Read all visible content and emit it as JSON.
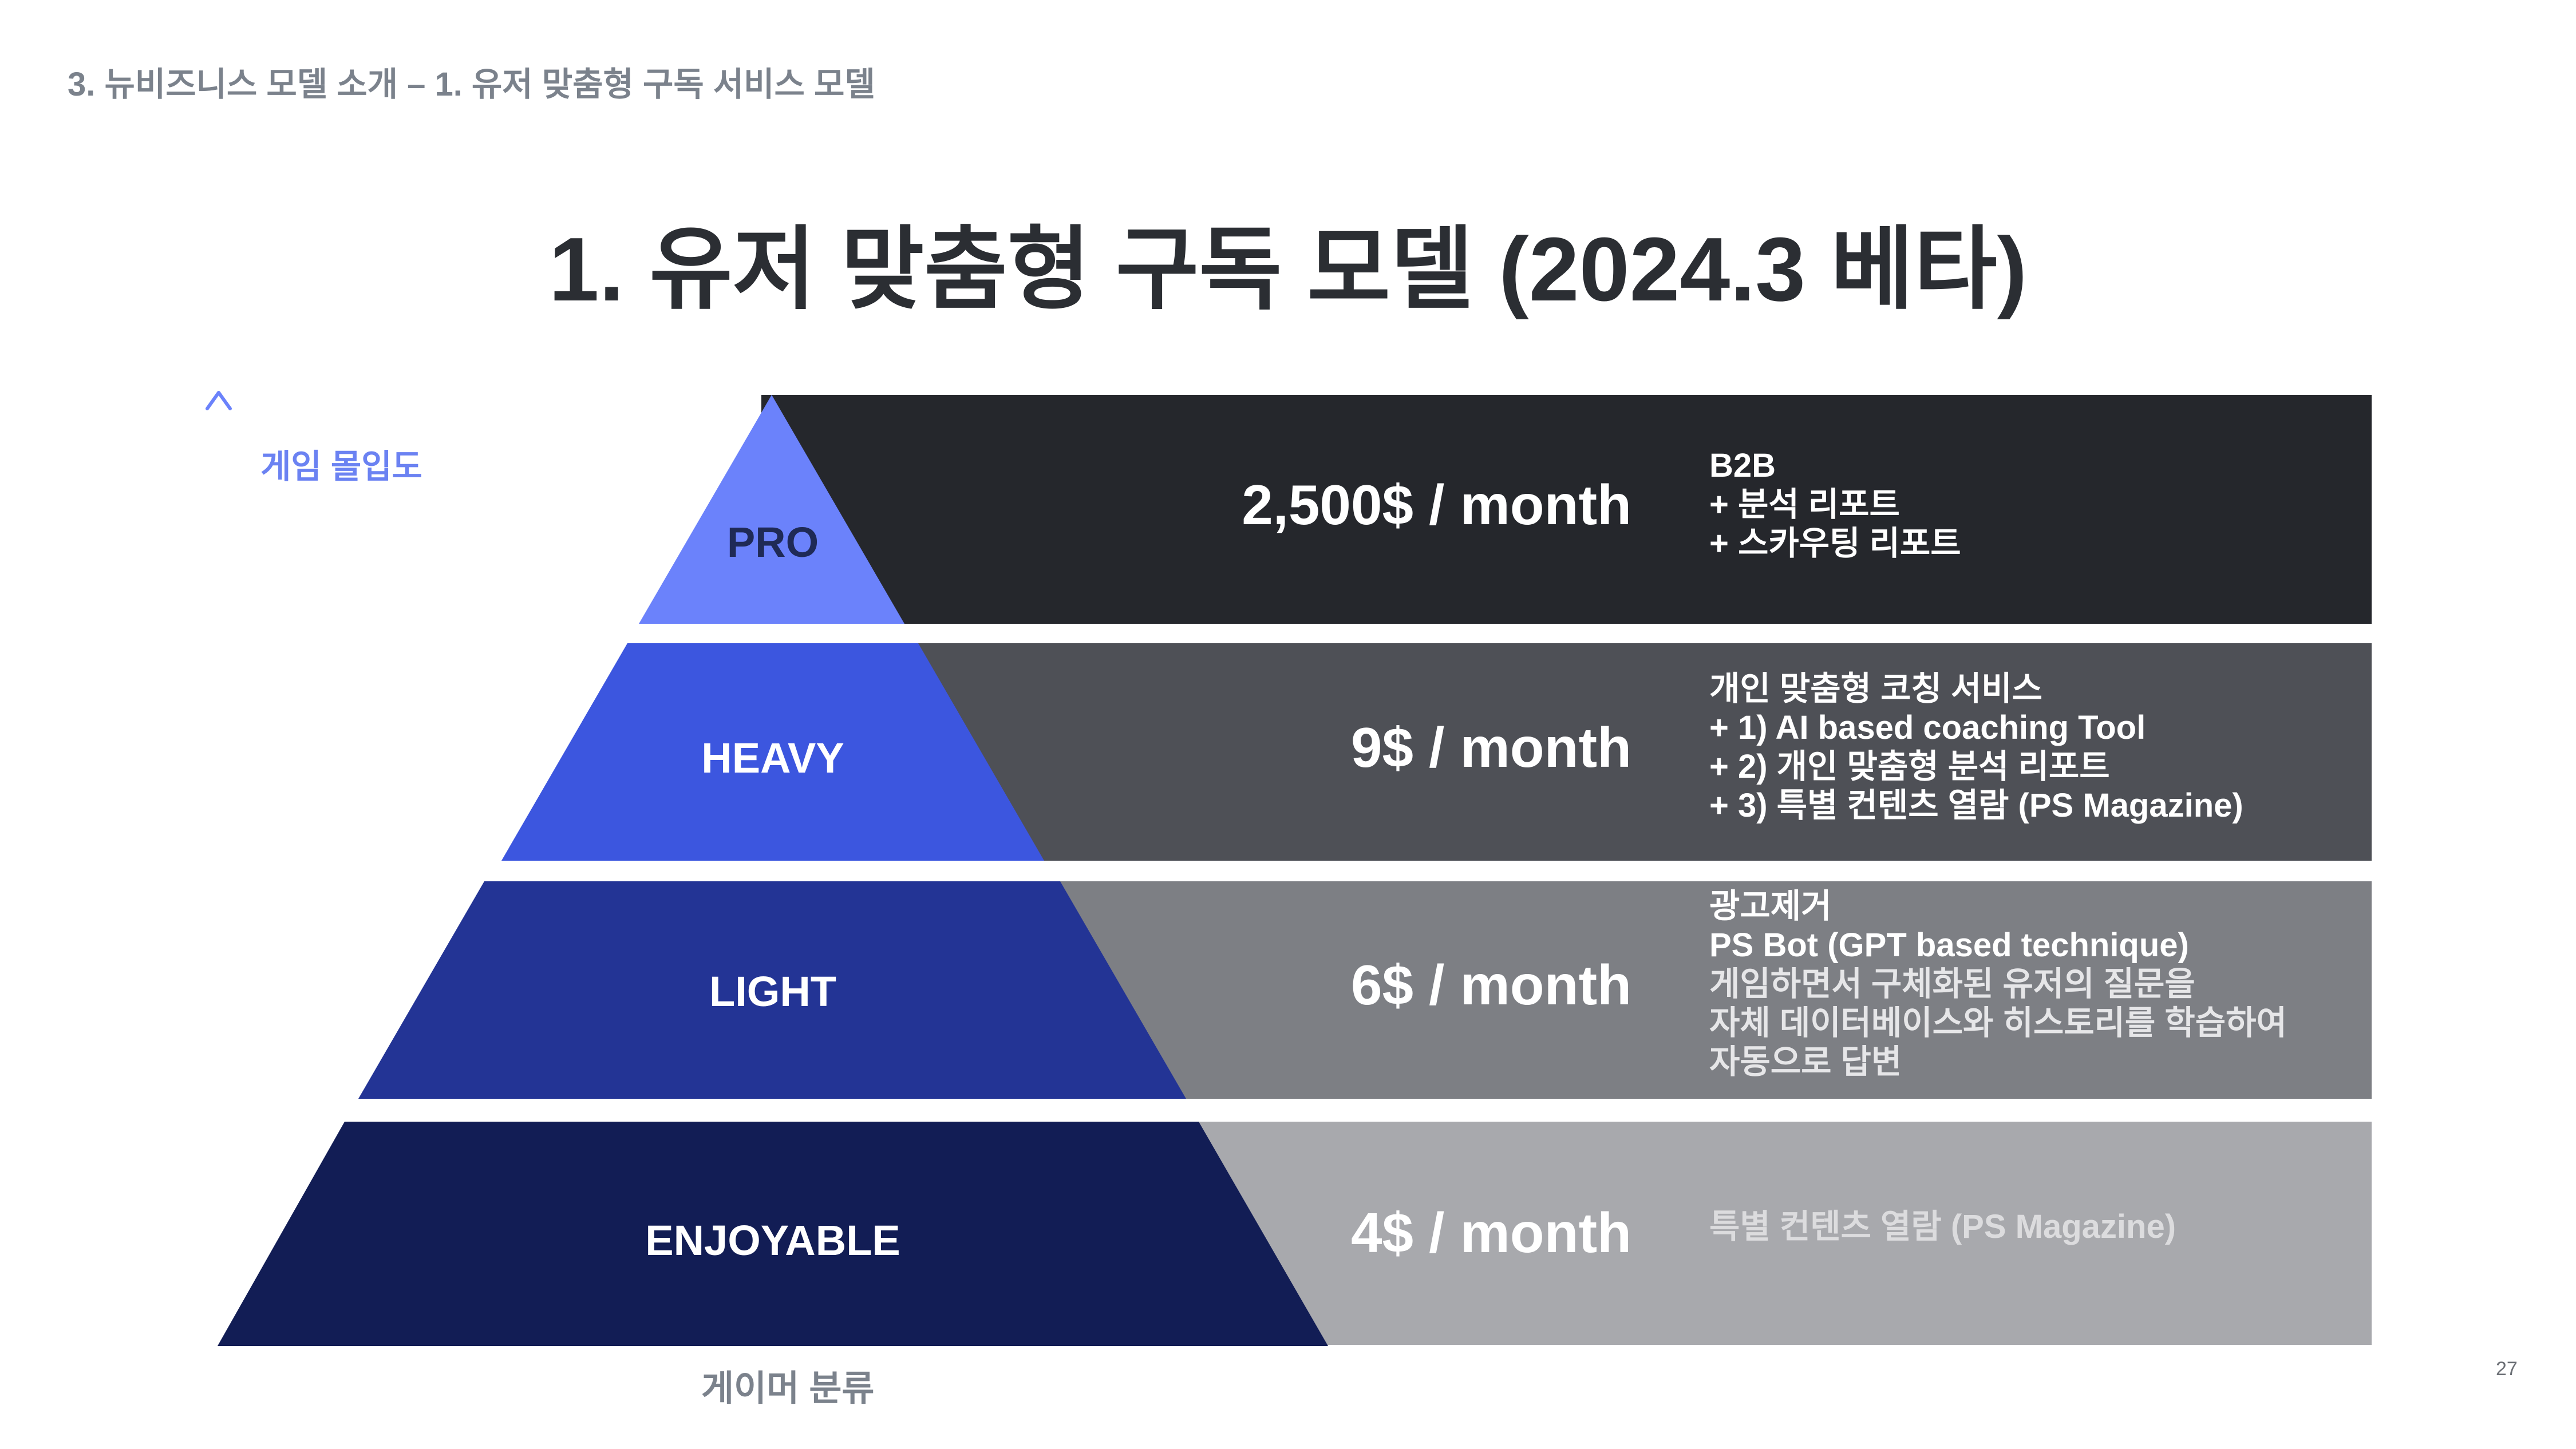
{
  "header": {
    "breadcrumb": "3. 뉴비즈니스 모델 소개 –  1. 유저 맞춤형 구독 서비스 모델",
    "title": "1. 유저 맞춤형 구독 모델 (2024.3 베타)"
  },
  "axes": {
    "y_label": "게임 몰입도",
    "x_label": "게이머 분류"
  },
  "colors": {
    "pro_tier": "#6b82fb",
    "heavy_tier": "#3c56df",
    "light_tier": "#233495",
    "enjoyable_tier": "#121d55",
    "pro_band": "#25272c",
    "heavy_band": "#4e5056",
    "light_band": "#7d7f84",
    "enjoyable_band": "#a8a9ad"
  },
  "tiers": [
    {
      "label": "PRO",
      "price": "2,500$ / month",
      "features": [
        "B2B",
        "+ 분석 리포트",
        "+ 스카우팅 리포트"
      ]
    },
    {
      "label": "HEAVY",
      "price": "9$ / month",
      "features": [
        "개인 맞춤형 코칭 서비스",
        "+ 1) AI based coaching Tool",
        "+ 2) 개인 맞춤형 분석 리포트",
        "+ 3) 특별 컨텐츠 열람 (PS Magazine)"
      ]
    },
    {
      "label": "LIGHT",
      "price": "6$ / month",
      "features": [
        "광고제거",
        "PS Bot (GPT based technique)",
        "게임하면서 구체화된 유저의 질문을",
        "자체 데이터베이스와 히스토리를 학습하여",
        "자동으로 답변"
      ]
    },
    {
      "label": "ENJOYABLE",
      "price": "4$ / month",
      "features": [
        "특별 컨텐츠 열람 (PS Magazine)"
      ]
    }
  ],
  "footer": {
    "page_number": "27"
  }
}
